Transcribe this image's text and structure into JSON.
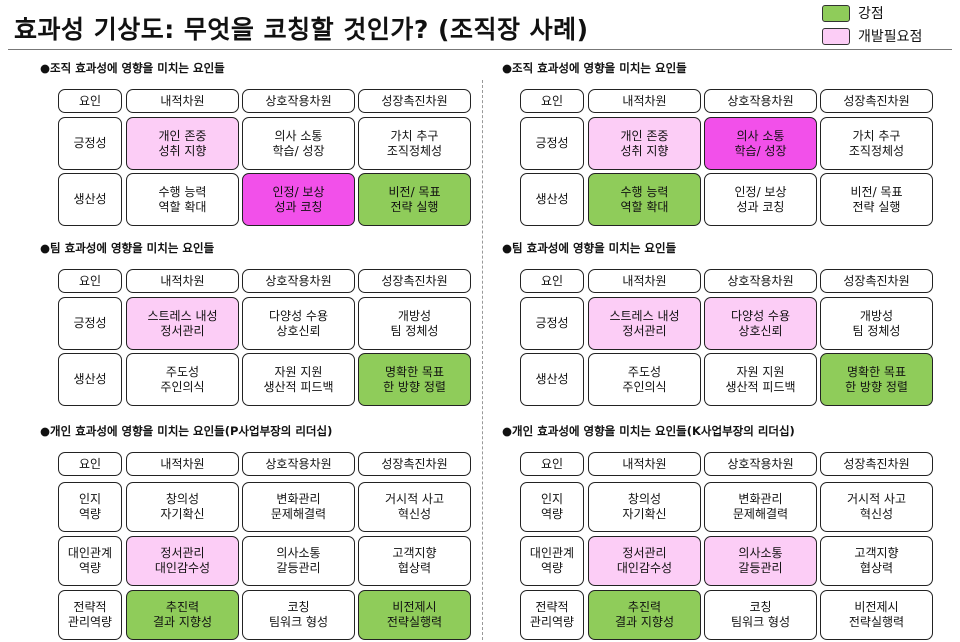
{
  "title": "효과성 기상도: 무엇을 코칭할 것인가? (조직장 사례)",
  "legend": [
    {
      "label": "강점",
      "color": "#8fcc5a"
    },
    {
      "label": "개발필요점",
      "color": "#fccdf6"
    }
  ],
  "colors": {
    "green": "#8fcc5a",
    "pink_light": "#fccdf6",
    "pink_strong": "#f250ea"
  },
  "columns": [
    {
      "sections": [
        {
          "title": "●조직 효과성에 영향을 미치는 요인들",
          "headers": [
            "요인",
            "내적차원",
            "상호작용차원",
            "성장촉진차원"
          ],
          "rows": [
            {
              "label": "긍정성",
              "cells": [
                {
                  "text": "개인 존중\n성취 지향",
                  "color": "pink"
                },
                {
                  "text": "의사 소통\n학습/ 성장",
                  "color": "none"
                },
                {
                  "text": "가치 추구\n조직정체성",
                  "color": "none"
                }
              ]
            },
            {
              "label": "생산성",
              "cells": [
                {
                  "text": "수행 능력\n역할 확대",
                  "color": "none"
                },
                {
                  "text": "인정/ 보상\n성과 코칭",
                  "color": "pinkd"
                },
                {
                  "text": "비전/ 목표\n전략 실행",
                  "color": "green"
                }
              ]
            }
          ]
        },
        {
          "title": "●팀 효과성에 영향을 미치는 요인들",
          "headers": [
            "요인",
            "내적차원",
            "상호작용차원",
            "성장촉진차원"
          ],
          "rows": [
            {
              "label": "긍정성",
              "cells": [
                {
                  "text": "스트레스 내성\n정서관리",
                  "color": "pink"
                },
                {
                  "text": "다양성 수용\n상호신뢰",
                  "color": "none"
                },
                {
                  "text": "개방성\n팀 정체성",
                  "color": "none"
                }
              ]
            },
            {
              "label": "생산성",
              "cells": [
                {
                  "text": "주도성\n주인의식",
                  "color": "none"
                },
                {
                  "text": "자원 지원\n생산적 피드백",
                  "color": "none"
                },
                {
                  "text": "명확한 목표\n한 방향 정렬",
                  "color": "green"
                }
              ]
            }
          ]
        },
        {
          "title": "●개인 효과성에 영향을 미치는 요인들(P사업부장의 리더십)",
          "headers": [
            "요인",
            "내적차원",
            "상호작용차원",
            "성장촉진차원"
          ],
          "rows": [
            {
              "label": "인지\n역량",
              "cells": [
                {
                  "text": "창의성\n자기확신",
                  "color": "none"
                },
                {
                  "text": "변화관리\n문제해결력",
                  "color": "none"
                },
                {
                  "text": "거시적 사고\n혁신성",
                  "color": "none"
                }
              ]
            },
            {
              "label": "대인관계\n역량",
              "cells": [
                {
                  "text": "정서관리\n대인감수성",
                  "color": "pink"
                },
                {
                  "text": "의사소통\n갈등관리",
                  "color": "none"
                },
                {
                  "text": "고객지향\n협상력",
                  "color": "none"
                }
              ]
            },
            {
              "label": "전략적\n관리역량",
              "cells": [
                {
                  "text": "추진력\n결과 지향성",
                  "color": "green"
                },
                {
                  "text": "코칭\n팀워크 형성",
                  "color": "none"
                },
                {
                  "text": "비전제시\n전략실행력",
                  "color": "green"
                }
              ]
            }
          ]
        }
      ]
    },
    {
      "sections": [
        {
          "title": "●조직 효과성에 영향을 미치는 요인들",
          "headers": [
            "요인",
            "내적차원",
            "상호작용차원",
            "성장촉진차원"
          ],
          "rows": [
            {
              "label": "긍정성",
              "cells": [
                {
                  "text": "개인 존중\n성취 지향",
                  "color": "pink"
                },
                {
                  "text": "의사 소통\n학습/ 성장",
                  "color": "pinkd"
                },
                {
                  "text": "가치 추구\n조직정체성",
                  "color": "none"
                }
              ]
            },
            {
              "label": "생산성",
              "cells": [
                {
                  "text": "수행 능력\n역할 확대",
                  "color": "green"
                },
                {
                  "text": "인정/ 보상\n성과 코칭",
                  "color": "none"
                },
                {
                  "text": "비전/ 목표\n전략 실행",
                  "color": "none"
                }
              ]
            }
          ]
        },
        {
          "title": "●팀 효과성에 영향을 미치는 요인들",
          "headers": [
            "요인",
            "내적차원",
            "상호작용차원",
            "성장촉진차원"
          ],
          "rows": [
            {
              "label": "긍정성",
              "cells": [
                {
                  "text": "스트레스 내성\n정서관리",
                  "color": "pink"
                },
                {
                  "text": "다양성 수용\n상호신뢰",
                  "color": "pink"
                },
                {
                  "text": "개방성\n팀 정체성",
                  "color": "none"
                }
              ]
            },
            {
              "label": "생산성",
              "cells": [
                {
                  "text": "주도성\n주인의식",
                  "color": "none"
                },
                {
                  "text": "자원 지원\n생산적 피드백",
                  "color": "none"
                },
                {
                  "text": "명확한 목표\n한 방향 정렬",
                  "color": "green"
                }
              ]
            }
          ]
        },
        {
          "title": "●개인 효과성에 영향을 미치는 요인들(K사업부장의 리더십)",
          "headers": [
            "요인",
            "내적차원",
            "상호작용차원",
            "성장촉진차원"
          ],
          "rows": [
            {
              "label": "인지\n역량",
              "cells": [
                {
                  "text": "창의성\n자기확신",
                  "color": "none"
                },
                {
                  "text": "변화관리\n문제해결력",
                  "color": "none"
                },
                {
                  "text": "거시적 사고\n혁신성",
                  "color": "none"
                }
              ]
            },
            {
              "label": "대인관계\n역량",
              "cells": [
                {
                  "text": "정서관리\n대인감수성",
                  "color": "pink"
                },
                {
                  "text": "의사소통\n갈등관리",
                  "color": "pink"
                },
                {
                  "text": "고객지향\n협상력",
                  "color": "none"
                }
              ]
            },
            {
              "label": "전략적\n관리역량",
              "cells": [
                {
                  "text": "추진력\n결과 지향성",
                  "color": "green"
                },
                {
                  "text": "코칭\n팀워크 형성",
                  "color": "none"
                },
                {
                  "text": "비전제시\n전략실행력",
                  "color": "none"
                }
              ]
            }
          ]
        }
      ]
    }
  ]
}
